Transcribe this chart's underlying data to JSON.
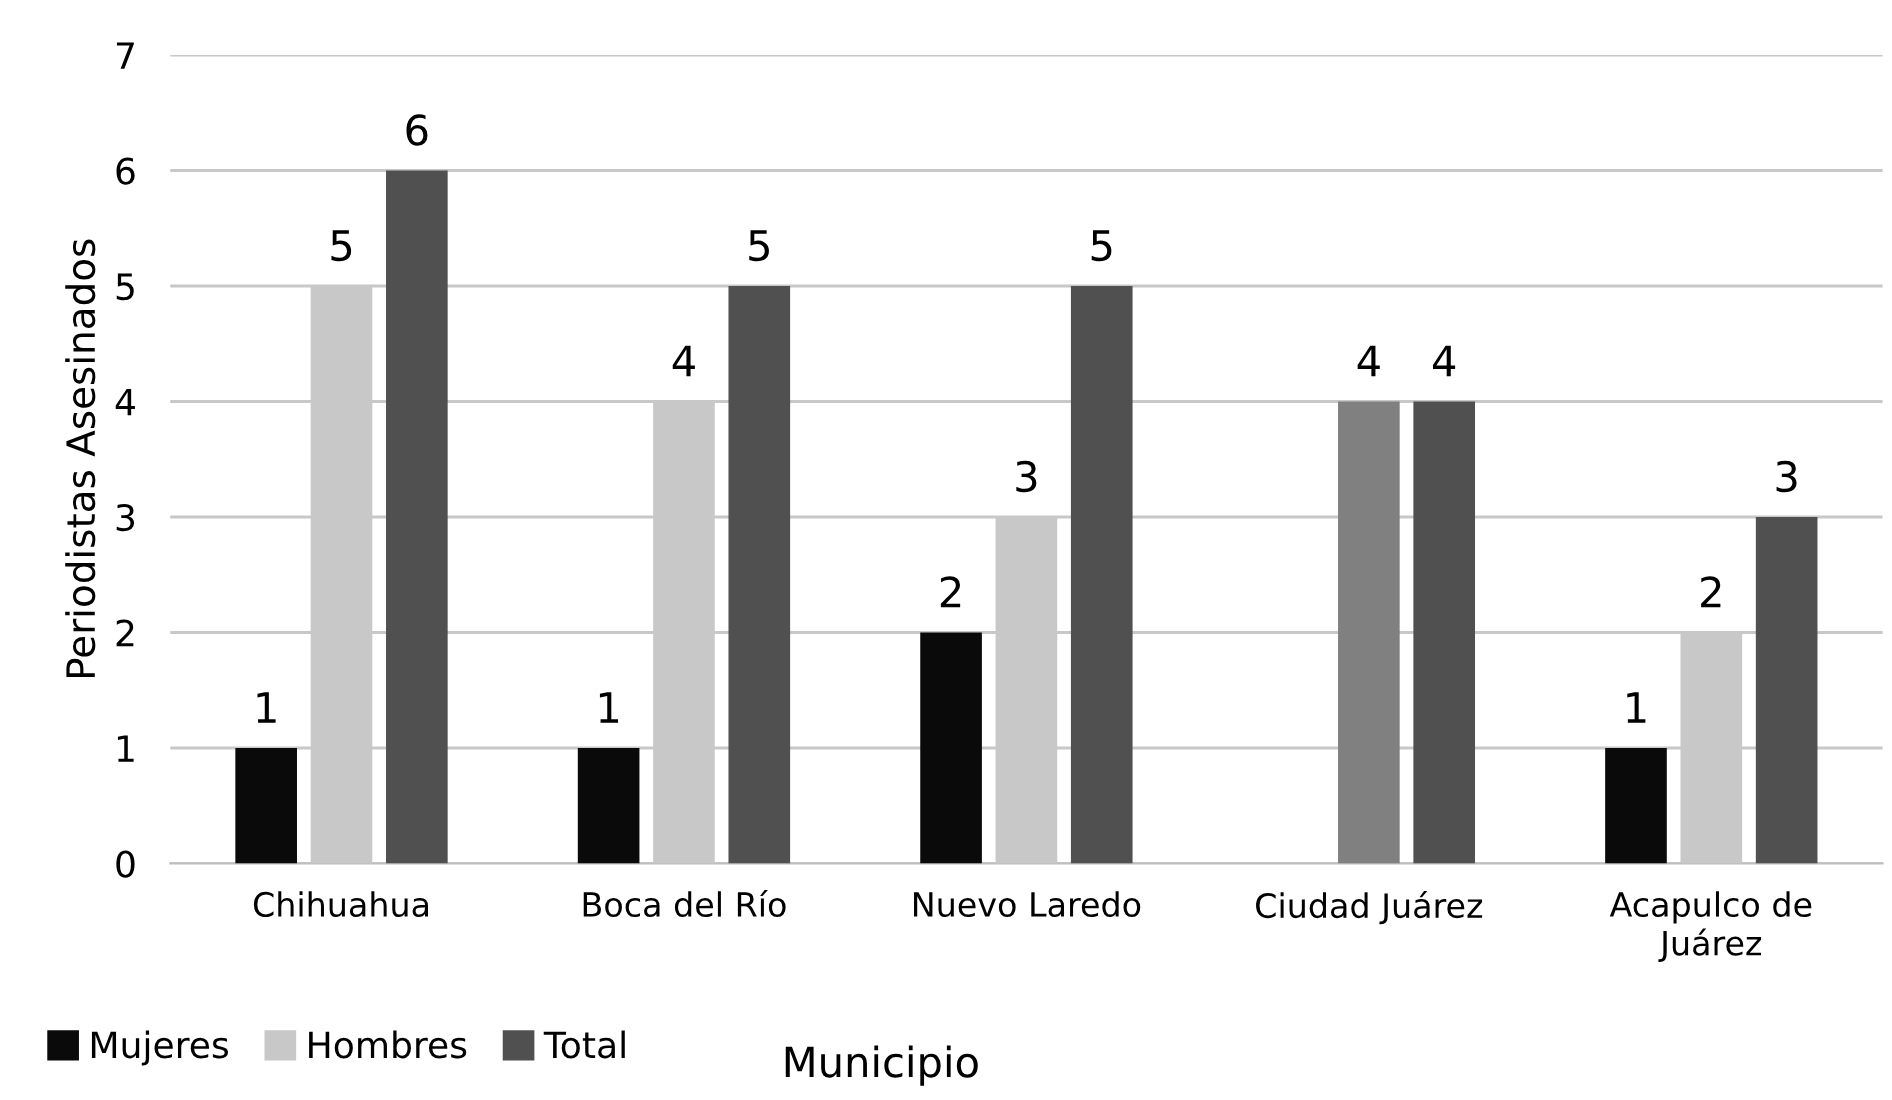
{
  "chart_data": {
    "type": "bar",
    "xlabel": "Municipio",
    "ylabel": "Periodistas Asesinados",
    "categories": [
      "Chihuahua",
      "Boca del Río",
      "Nuevo Laredo",
      "Ciudad Juárez",
      "Acapulco de\nJuárez"
    ],
    "series": [
      {
        "name": "Mujeres",
        "color": "#0a0a0a",
        "values": [
          1,
          1,
          2,
          null,
          1
        ]
      },
      {
        "name": "Hombres",
        "color": "#c8c8c8",
        "colors": [
          "#c8c8c8",
          "#c8c8c8",
          "#c8c8c8",
          "#808080",
          "#c8c8c8"
        ],
        "values": [
          5,
          4,
          3,
          4,
          2
        ]
      },
      {
        "name": "Total",
        "color": "#505050",
        "values": [
          6,
          5,
          5,
          4,
          3
        ]
      }
    ],
    "ylim": [
      0,
      7
    ],
    "yticks": [
      0,
      1,
      2,
      3,
      4,
      5,
      6,
      7
    ],
    "grid": "y",
    "legend": "bottom left",
    "data_labels": true
  }
}
